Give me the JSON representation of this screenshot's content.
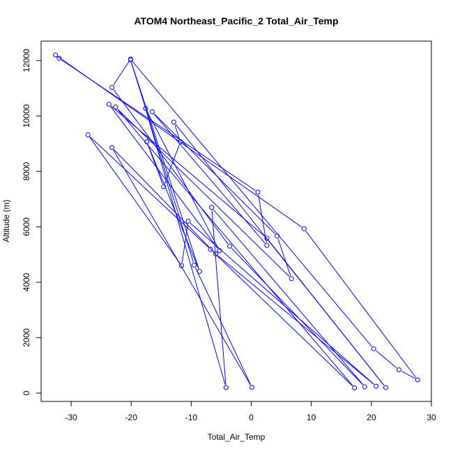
{
  "chart_data": {
    "type": "line",
    "title": "ATOM4 Northeast_Pacific_2 Total_Air_Temp",
    "xlabel": "Total_Air_Temp",
    "ylabel": "Altitude (m)",
    "xlim": [
      -35,
      30
    ],
    "ylim": [
      -300,
      12700
    ],
    "xticks": [
      -30,
      -20,
      -10,
      0,
      10,
      20,
      30
    ],
    "yticks": [
      0,
      2000,
      4000,
      6000,
      8000,
      10000,
      12000
    ],
    "grid": false,
    "legend": "none",
    "colors": {
      "series": "#0000ff",
      "axis": "#000000",
      "background": "#ffffff"
    },
    "series": [
      {
        "marker": "open-circle",
        "points": [
          [
            -32.6,
            12200
          ],
          [
            8.8,
            5930
          ],
          [
            27.7,
            480
          ],
          [
            24.6,
            840
          ],
          [
            20.4,
            1600
          ],
          [
            -20.1,
            12050
          ],
          [
            -23.2,
            11030
          ],
          [
            -3.6,
            5300
          ],
          [
            18.9,
            230
          ],
          [
            -6.6,
            6700
          ],
          [
            -4.2,
            200
          ],
          [
            -17.6,
            10270
          ],
          [
            -5.3,
            5140
          ],
          [
            -23.7,
            10420
          ],
          [
            2.6,
            5590
          ],
          [
            22.4,
            200
          ],
          [
            -12.9,
            9780
          ],
          [
            -11.8,
            9070
          ],
          [
            -14.6,
            7450
          ],
          [
            -17.4,
            9070
          ],
          [
            -8.6,
            4390
          ],
          [
            -20.1,
            12020
          ],
          [
            -9.5,
            4620
          ],
          [
            0.1,
            210
          ],
          [
            -23.2,
            8860
          ],
          [
            -5.9,
            5020
          ],
          [
            20.8,
            250
          ],
          [
            -10.5,
            6200
          ],
          [
            -11.6,
            4600
          ],
          [
            -27.2,
            9320
          ],
          [
            -6.8,
            5190
          ],
          [
            17.2,
            190
          ],
          [
            -22.6,
            10320
          ],
          [
            6.7,
            4130
          ],
          [
            4.3,
            5670
          ],
          [
            -16.5,
            10150
          ],
          [
            2.6,
            5330
          ],
          [
            1.1,
            7250
          ],
          [
            -32.0,
            12080
          ]
        ]
      }
    ]
  }
}
